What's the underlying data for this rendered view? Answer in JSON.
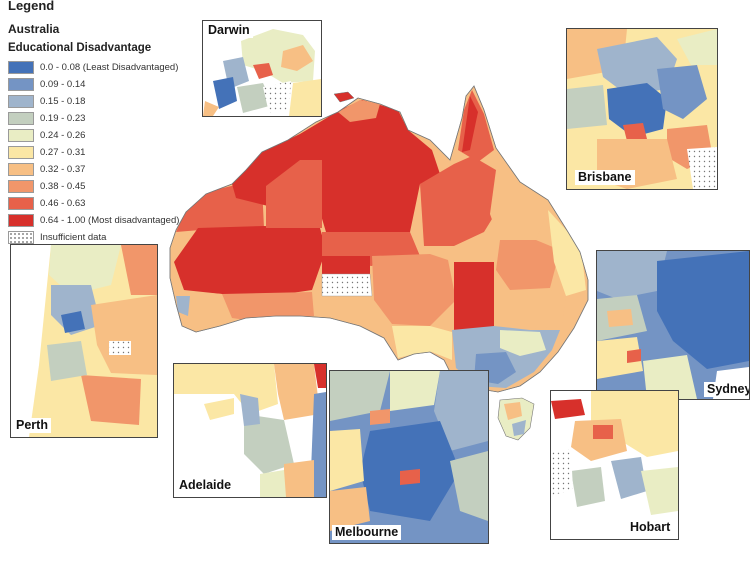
{
  "legend": {
    "title": "Legend",
    "region": "Australia",
    "measure": "Educational Disadvantage",
    "items": [
      {
        "label": "0.0 - 0.08 (Least Disadvantaged)",
        "color": "#4472b8"
      },
      {
        "label": "0.09 - 0.14",
        "color": "#7494c4"
      },
      {
        "label": "0.15 - 0.18",
        "color": "#9fb4cc"
      },
      {
        "label": "0.19 - 0.23",
        "color": "#c3cfbf"
      },
      {
        "label": "0.24 - 0.26",
        "color": "#e9edc4"
      },
      {
        "label": "0.27 - 0.31",
        "color": "#fbe7a5"
      },
      {
        "label": "0.32 - 0.37",
        "color": "#f7bf84"
      },
      {
        "label": "0.38 - 0.45",
        "color": "#f1966a"
      },
      {
        "label": "0.46 - 0.63",
        "color": "#e7614a"
      },
      {
        "label": "0.64 - 1.00 (Most disadvantaged)",
        "color": "#d7302b"
      },
      {
        "label": "Insufficient data",
        "color": "#ffffff",
        "pattern": "dotted"
      }
    ]
  },
  "insets": {
    "darwin": "Darwin",
    "brisbane": "Brisbane",
    "sydney": "Sydney",
    "perth": "Perth",
    "adelaide": "Adelaide",
    "melbourne": "Melbourne",
    "hobart": "Hobart"
  }
}
